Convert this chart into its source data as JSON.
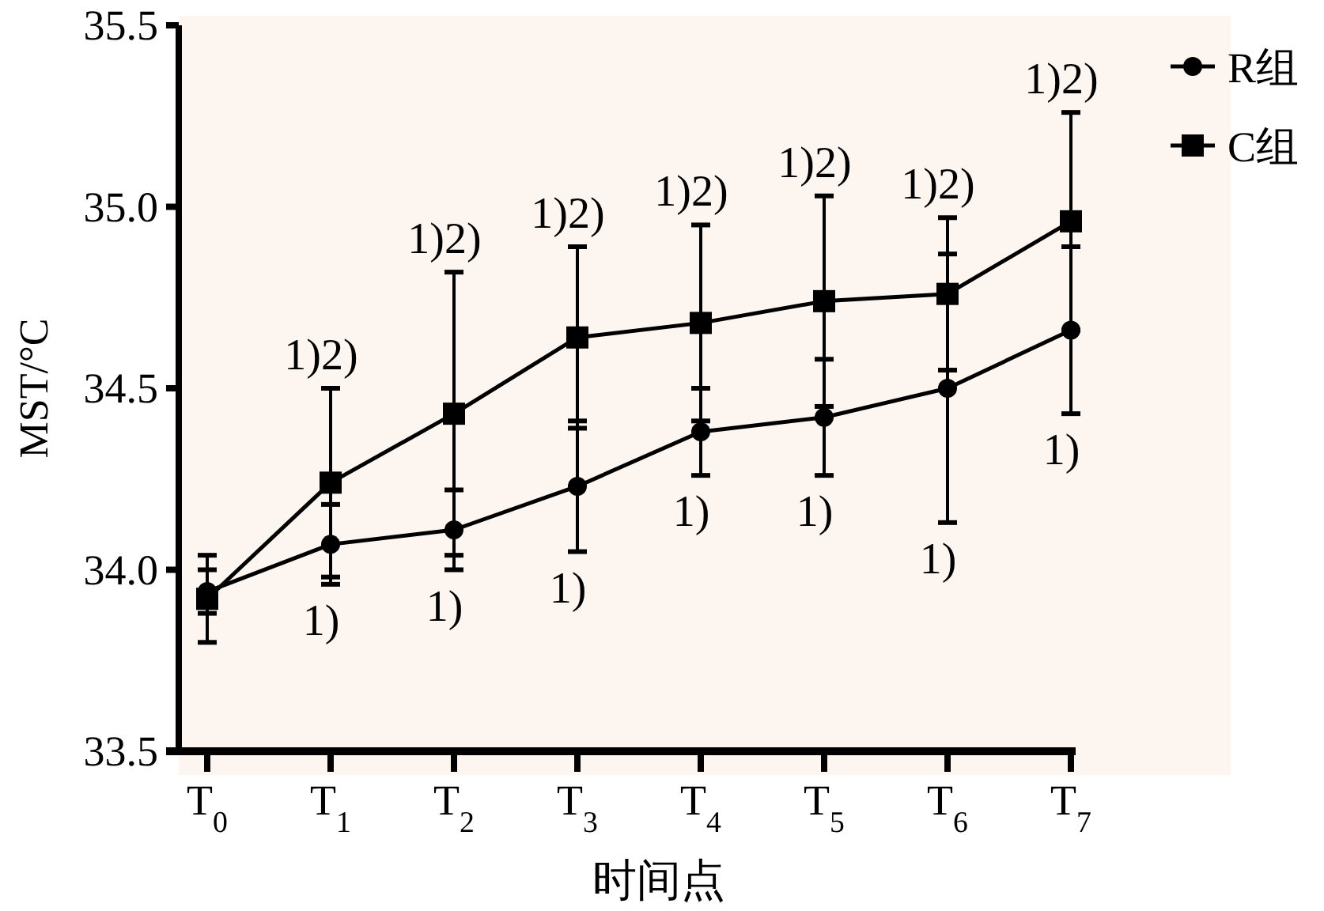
{
  "chart_data": {
    "type": "line",
    "xlabel": "时间点",
    "ylabel": "MST/°C",
    "categories": [
      "T$_{0}$",
      "T$_{1}$",
      "T$_{2}$",
      "T$_{3}$",
      "T$_{4}$",
      "T$_{5}$",
      "T$_{6}$",
      "T$_{7}$"
    ],
    "ylim": [
      33.5,
      35.5
    ],
    "yticks": [
      33.5,
      {
        "value": 34,
        "label": "34.0"
      },
      34.5,
      {
        "value": 35,
        "label": "35.0"
      },
      35.5
    ],
    "grid": false,
    "legend": "top right",
    "series": [
      {
        "name": "R组",
        "color": "#000000",
        "marker": "circle",
        "values": [
          33.94,
          34.07,
          34.11,
          34.23,
          34.38,
          34.42,
          34.5,
          34.66
        ],
        "errors": [
          0.06,
          0.11,
          0.11,
          0.18,
          0.12,
          0.16,
          0.37,
          0.23
        ]
      },
      {
        "name": "C组",
        "color": "#000000",
        "marker": "square",
        "values": [
          33.92,
          34.24,
          34.43,
          34.64,
          34.68,
          34.74,
          34.76,
          34.96
        ],
        "errors": [
          0.12,
          0.26,
          0.39,
          0.25,
          0.27,
          0.29,
          0.21,
          0.3
        ]
      }
    ],
    "annotations": [
      {
        "text": "1)2)",
        "x": "T$_{1}$",
        "y": 34.5
      },
      {
        "text": "1)2)",
        "x": "T$_{2}$",
        "y": 34.82
      },
      {
        "text": "1)2)",
        "x": "T$_{3}$",
        "y": 34.89
      },
      {
        "text": "1)2)",
        "x": "T$_{4}$",
        "y": 34.95
      },
      {
        "text": "1)2)",
        "x": "T$_{5}$",
        "y": 35.03
      },
      {
        "text": "1)2)",
        "x": "T$_{6}$",
        "y": 34.97
      },
      {
        "text": "1)2)",
        "x": "T$_{7}$",
        "y": 35.26
      },
      {
        "text": "1)",
        "x": "T$_{1}$",
        "y": 33.96
      },
      {
        "text": "1)",
        "x": "T$_{2}$",
        "y": 34.0
      },
      {
        "text": "1)",
        "x": "T$_{3}$",
        "y": 34.05
      },
      {
        "text": "1)",
        "x": "T$_{4}$",
        "y": 34.26
      },
      {
        "text": "1)",
        "x": "T$_{5}$",
        "y": 34.26
      },
      {
        "text": "1)",
        "x": "T$_{6}$",
        "y": 34.13
      },
      {
        "text": "1)",
        "x": "T$_{7}$",
        "y": 34.43
      }
    ]
  }
}
